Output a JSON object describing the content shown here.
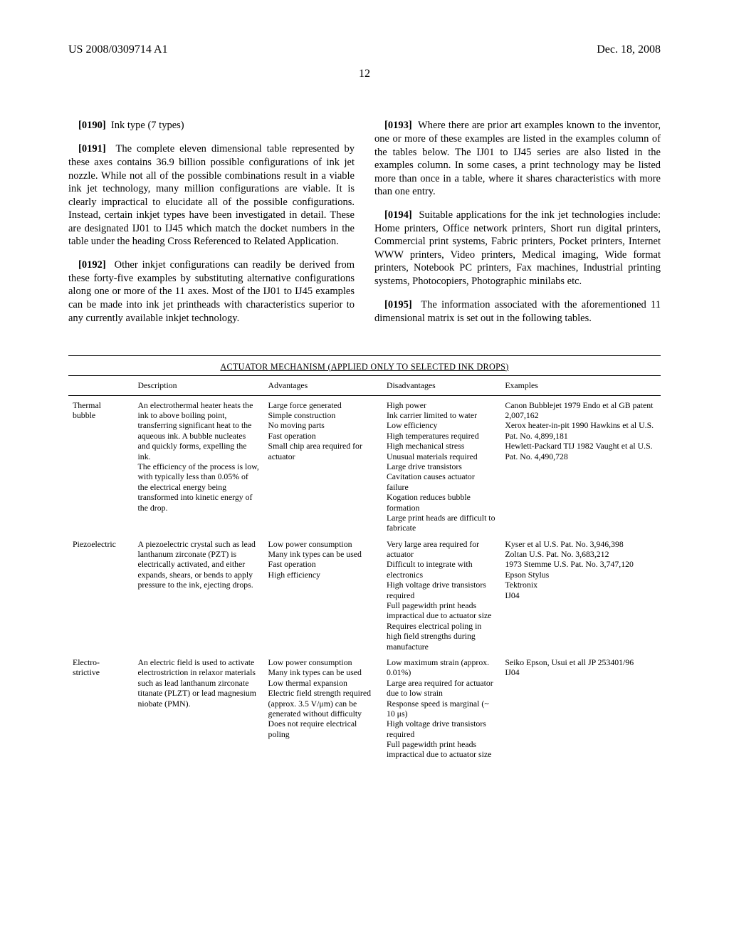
{
  "header": {
    "left": "US 2008/0309714 A1",
    "right": "Dec. 18, 2008"
  },
  "page_number": "12",
  "left_col_paragraphs": [
    {
      "num": "[0190]",
      "text": "Ink type (7 types)"
    },
    {
      "num": "[0191]",
      "text": "The complete eleven dimensional table represented by these axes contains 36.9 billion possible configurations of ink jet nozzle. While not all of the possible combinations result in a viable ink jet technology, many million configurations are viable. It is clearly impractical to elucidate all of the possible configurations. Instead, certain inkjet types have been investigated in detail. These are designated IJ01 to IJ45 which match the docket numbers in the table under the heading Cross Referenced to Related Application."
    },
    {
      "num": "[0192]",
      "text": "Other inkjet configurations can readily be derived from these forty-five examples by substituting alternative configurations along one or more of the 11 axes. Most of the IJ01 to IJ45 examples can be made into ink jet printheads with characteristics superior to any currently available inkjet technology."
    }
  ],
  "right_col_paragraphs": [
    {
      "num": "[0193]",
      "text": "Where there are prior art examples known to the inventor, one or more of these examples are listed in the examples column of the tables below. The IJ01 to IJ45 series are also listed in the examples column. In some cases, a print technology may be listed more than once in a table, where it shares characteristics with more than one entry."
    },
    {
      "num": "[0194]",
      "text": "Suitable applications for the ink jet technologies include: Home printers, Office network printers, Short run digital printers, Commercial print systems, Fabric printers, Pocket printers, Internet WWW printers, Video printers, Medical imaging, Wide format printers, Notebook PC printers, Fax machines, Industrial printing systems, Photocopiers, Photographic minilabs etc."
    },
    {
      "num": "[0195]",
      "text": "The information associated with the aforementioned 11 dimensional matrix is set out in the following tables."
    }
  ],
  "table": {
    "title": "ACTUATOR MECHANISM (APPLIED ONLY TO SELECTED INK DROPS)",
    "columns": [
      "",
      "Description",
      "Advantages",
      "Disadvantages",
      "Examples"
    ],
    "rows": [
      {
        "name": "Thermal bubble",
        "description": [
          "An electrothermal heater heats the ink to above boiling point, transferring significant heat to the aqueous ink. A bubble nucleates and quickly forms, expelling the ink.",
          "The efficiency of the process is low, with typically less than 0.05% of the electrical energy being transformed into kinetic energy of the drop."
        ],
        "advantages": [
          "Large force generated",
          "Simple construction",
          "No moving parts",
          "Fast operation",
          "Small chip area required for actuator"
        ],
        "disadvantages": [
          "High power",
          "Ink carrier limited to water",
          "Low efficiency",
          "High temperatures required",
          "High mechanical stress",
          "Unusual materials required",
          "Large drive transistors",
          "Cavitation causes actuator failure",
          "Kogation reduces bubble formation",
          "Large print heads are difficult to fabricate"
        ],
        "examples": [
          "Canon Bubblejet 1979 Endo et al GB patent 2,007,162",
          "Xerox heater-in-pit 1990 Hawkins et al U.S. Pat. No. 4,899,181",
          "Hewlett-Packard TIJ 1982 Vaught et al U.S. Pat. No. 4,490,728"
        ]
      },
      {
        "name": "Piezoelectric",
        "description": [
          "A piezoelectric crystal such as lead lanthanum zirconate (PZT) is electrically activated, and either expands, shears, or bends to apply pressure to the ink, ejecting drops."
        ],
        "advantages": [
          "Low power consumption",
          "Many ink types can be used",
          "Fast operation",
          "High efficiency"
        ],
        "disadvantages": [
          "Very large area required for actuator",
          "Difficult to integrate with electronics",
          "High voltage drive transistors required",
          "Full pagewidth print heads impractical due to actuator size",
          "Requires electrical poling in high field strengths during manufacture"
        ],
        "examples": [
          "Kyser et al U.S. Pat. No. 3,946,398",
          "Zoltan U.S. Pat. No. 3,683,212",
          "1973 Stemme U.S. Pat. No. 3,747,120",
          "Epson Stylus",
          "Tektronix",
          "IJ04"
        ]
      },
      {
        "name": "Electro-strictive",
        "description": [
          "An electric field is used to activate electrostriction in relaxor materials such as lead lanthanum zirconate titanate (PLZT) or lead magnesium niobate (PMN)."
        ],
        "advantages": [
          "Low power consumption",
          "Many ink types can be used",
          "Low thermal expansion",
          "Electric field strength required (approx. 3.5 V/μm) can be generated without difficulty",
          "Does not require electrical poling"
        ],
        "disadvantages": [
          "Low maximum strain (approx. 0.01%)",
          "Large area required for actuator due to low strain",
          "Response speed is marginal (~ 10 μs)",
          "High voltage drive transistors required",
          "Full pagewidth print heads impractical due to actuator size"
        ],
        "examples": [
          "Seiko Epson, Usui et all JP 253401/96",
          "IJ04"
        ]
      }
    ]
  }
}
